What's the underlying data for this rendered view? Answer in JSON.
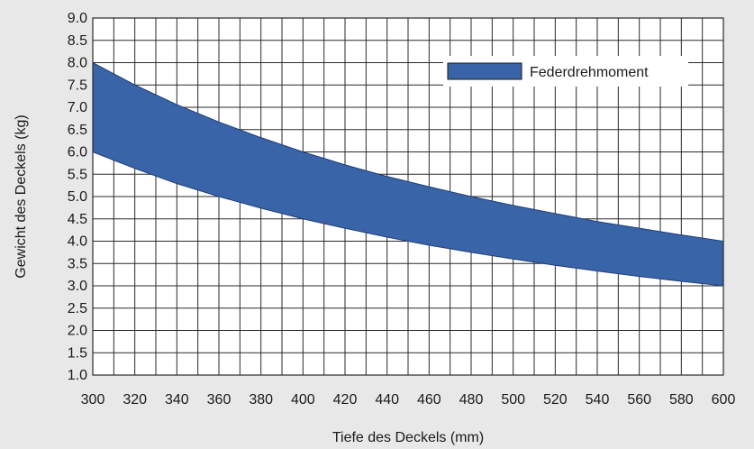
{
  "chart_data": {
    "type": "area",
    "title": "",
    "xlabel": "Tiefe des Deckels (mm)",
    "ylabel": "Gewicht des Deckels (kg)",
    "xlim": [
      300,
      600
    ],
    "ylim": [
      1.0,
      9.0
    ],
    "x_ticks": [
      300,
      320,
      340,
      360,
      380,
      400,
      420,
      440,
      460,
      480,
      500,
      520,
      540,
      560,
      580,
      600
    ],
    "y_ticks": [
      1.0,
      1.5,
      2.0,
      2.5,
      3.0,
      3.5,
      4.0,
      4.5,
      5.0,
      5.5,
      6.0,
      6.5,
      7.0,
      7.5,
      8.0,
      8.5,
      9.0
    ],
    "x_tick_labels": [
      "300",
      "320",
      "340",
      "360",
      "380",
      "400",
      "420",
      "440",
      "460",
      "480",
      "500",
      "520",
      "540",
      "560",
      "580",
      "600"
    ],
    "y_tick_labels": [
      "1.0",
      "1.5",
      "2.0",
      "2.5",
      "3.0",
      "3.5",
      "4.0",
      "4.5",
      "5.0",
      "5.5",
      "6.0",
      "6.5",
      "7.0",
      "7.5",
      "8.0",
      "8.5",
      "9.0"
    ],
    "grid": true,
    "x_minor_step": 10,
    "legend_position": "top-right",
    "series": [
      {
        "name": "Federdrehmoment",
        "color": "#3a64a8",
        "x": [
          300,
          320,
          340,
          360,
          380,
          400,
          420,
          440,
          460,
          480,
          500,
          520,
          540,
          560,
          580,
          600
        ],
        "upper": [
          8.0,
          7.5,
          7.06,
          6.67,
          6.32,
          6.0,
          5.71,
          5.45,
          5.22,
          5.0,
          4.8,
          4.62,
          4.44,
          4.29,
          4.14,
          4.0
        ],
        "lower": [
          6.0,
          5.63,
          5.29,
          5.0,
          4.74,
          4.5,
          4.29,
          4.09,
          3.91,
          3.75,
          3.6,
          3.46,
          3.33,
          3.21,
          3.1,
          3.0
        ]
      }
    ]
  }
}
